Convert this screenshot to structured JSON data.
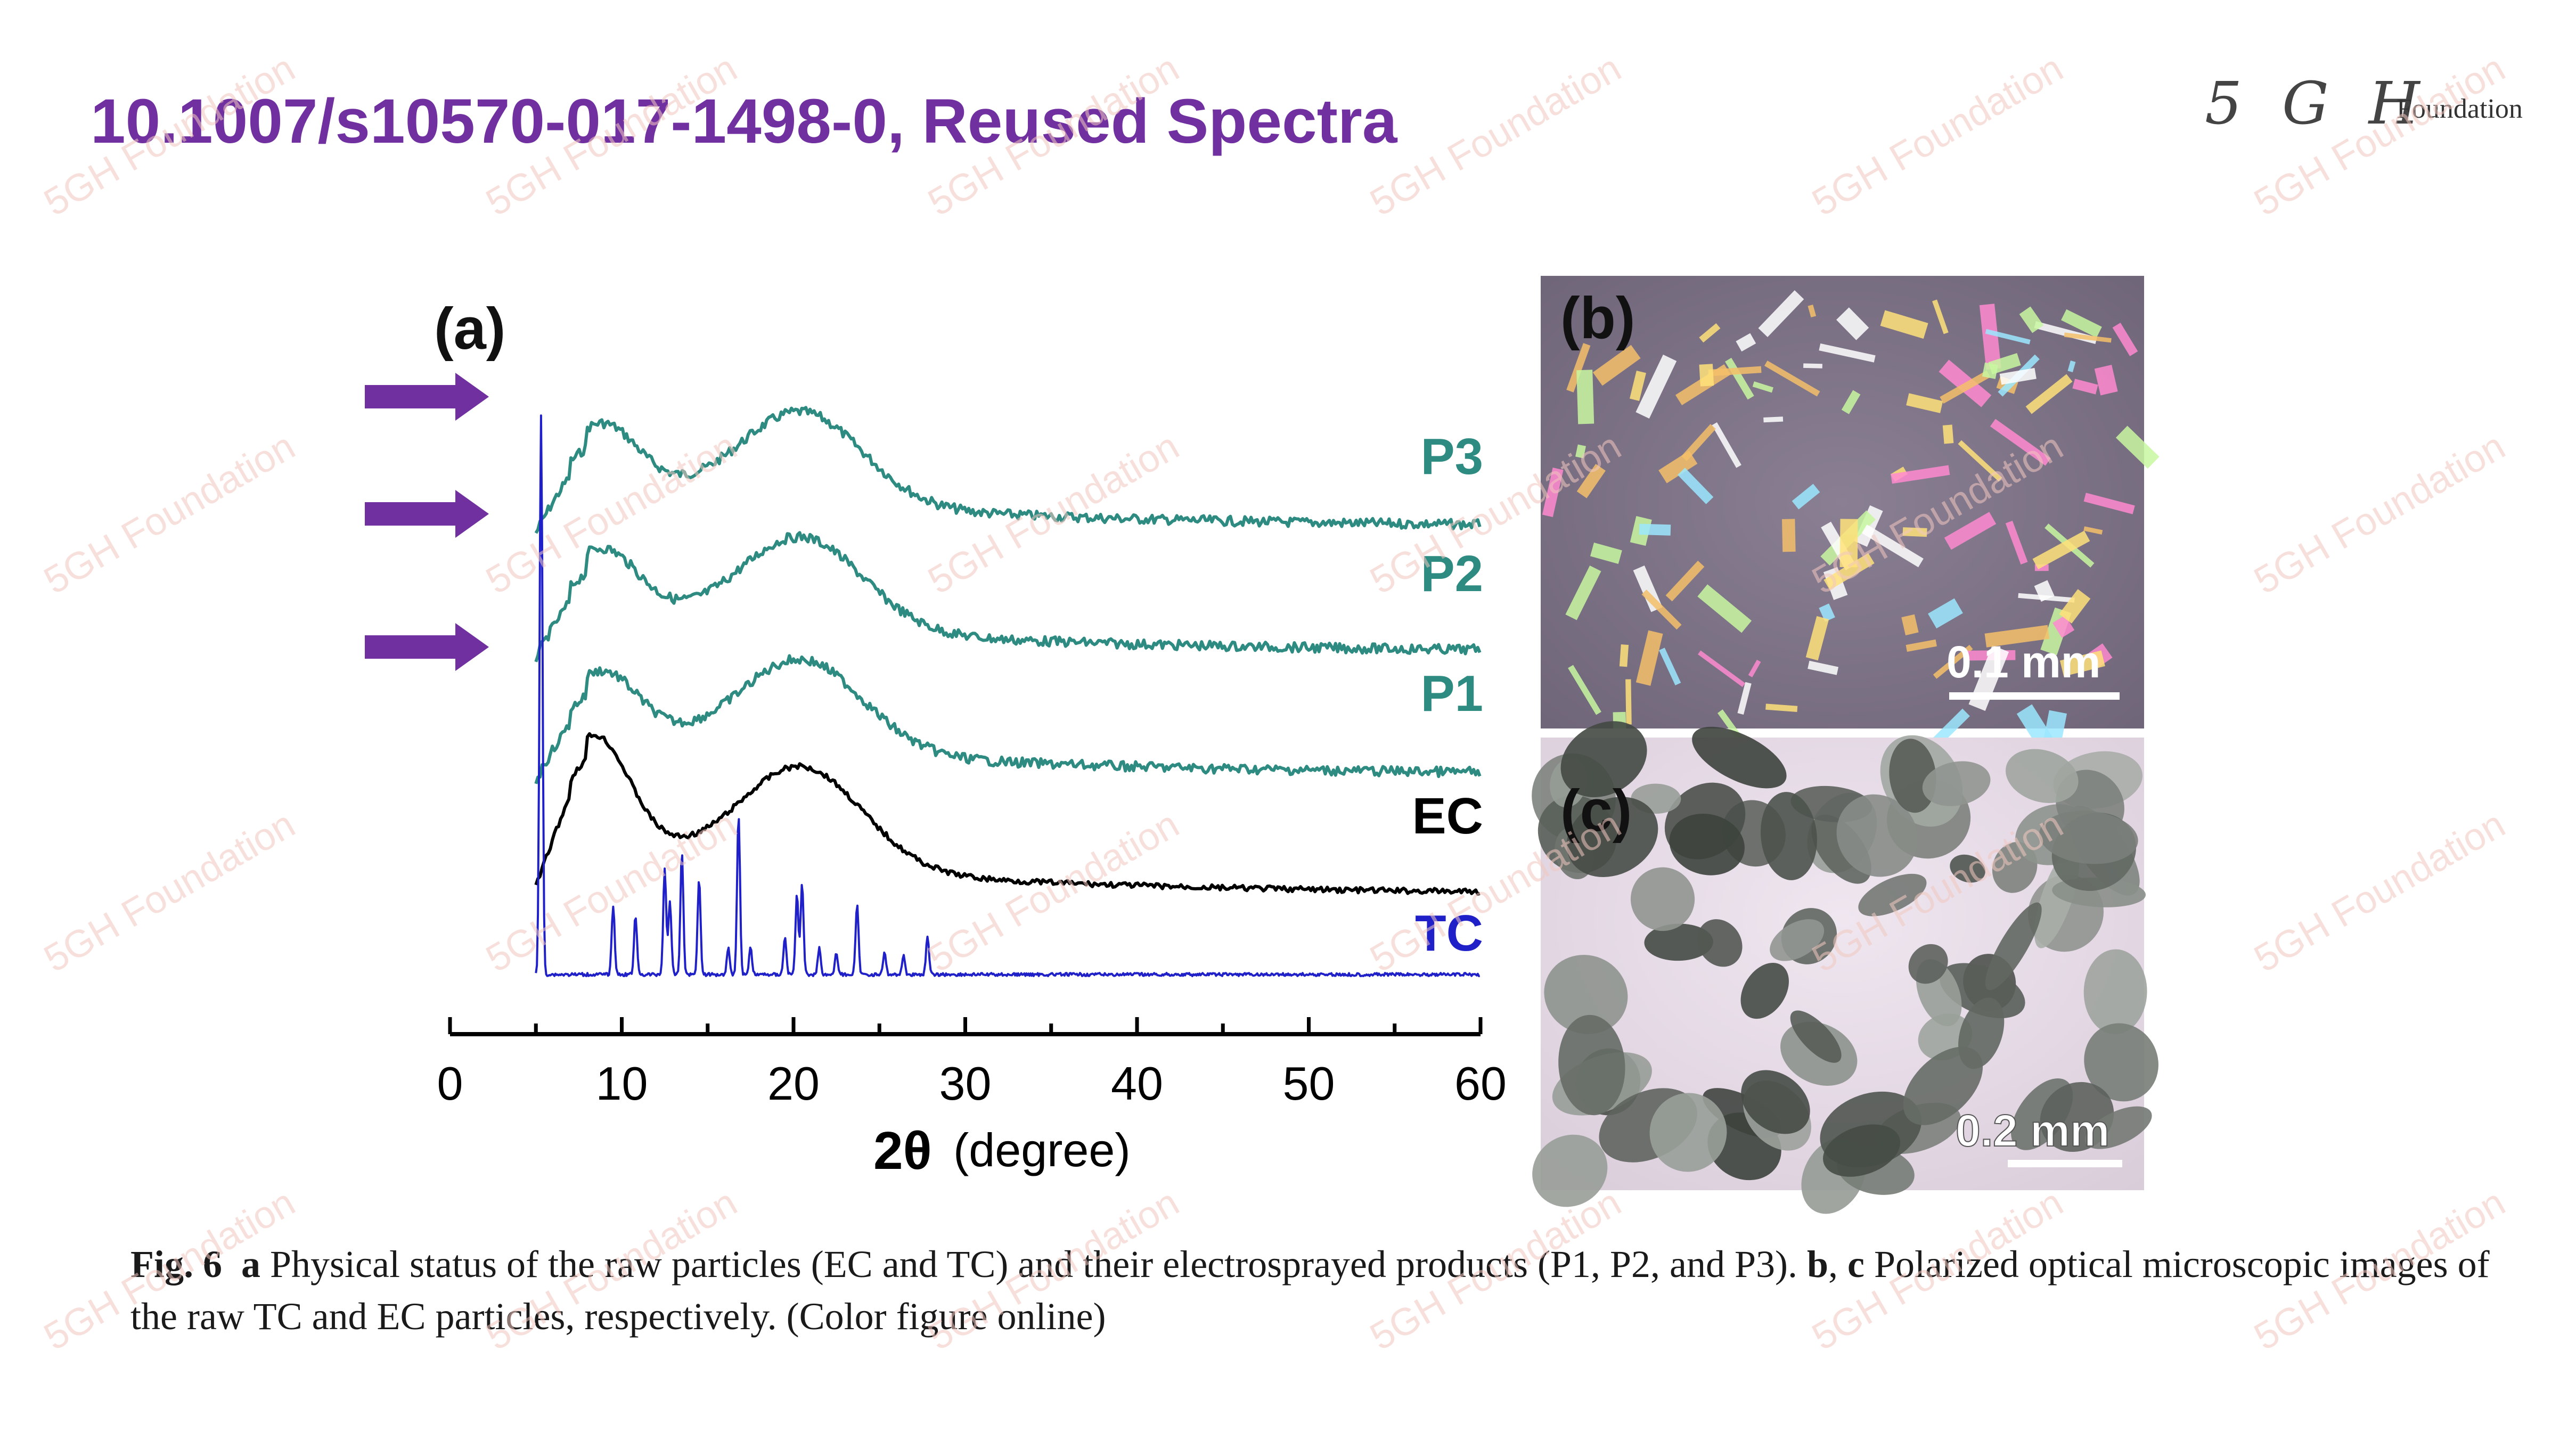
{
  "slide": {
    "title": "10.1007/s10570-017-1498-0, Reused Spectra",
    "logo_mark": "5 G H",
    "logo_text": "Foundation",
    "watermark": "5GH Foundation",
    "arrow_color": "#7030a0"
  },
  "panels": {
    "a_label": "(a)",
    "b_label": "(b)",
    "c_label": "(c)",
    "b_scale": "0.1 mm",
    "c_scale": "0.2 mm"
  },
  "chart_data": {
    "type": "line",
    "xlabel_symbol": "2θ",
    "xlabel_unit": "(degree)",
    "ylabel": "",
    "xlim": [
      0,
      60
    ],
    "x_ticks": [
      "0",
      "10",
      "20",
      "30",
      "40",
      "50",
      "60"
    ],
    "grid": false,
    "series": [
      {
        "name": "P3",
        "color": "#2e8b82",
        "peaks": [
          9,
          20.5
        ],
        "note_arrow": true
      },
      {
        "name": "P2",
        "color": "#2e8b82",
        "peaks": [
          9,
          20.5
        ],
        "note_arrow": true
      },
      {
        "name": "P1",
        "color": "#2e8b82",
        "peaks": [
          9,
          20.5
        ],
        "note_arrow": true
      },
      {
        "name": "EC",
        "color": "#000000",
        "peaks": [
          8.5,
          20.5
        ]
      },
      {
        "name": "TC",
        "color": "#2020c8",
        "peaks": [
          5.3,
          9.5,
          10.8,
          12.5,
          13.5,
          14.5,
          16.8,
          20.2,
          20.5,
          23.7,
          27.8
        ]
      }
    ]
  },
  "caption": {
    "fig": "Fig. 6",
    "a": "a",
    "a_text": " Physical status of the raw particles (EC and TC) and their electrosprayed products (P1, P2, and P3). ",
    "b": "b",
    "sep": ", ",
    "c": "c",
    "c_text": " Polarized optical microscopic images of the raw TC and EC particles, respectively. (Color figure online)"
  }
}
